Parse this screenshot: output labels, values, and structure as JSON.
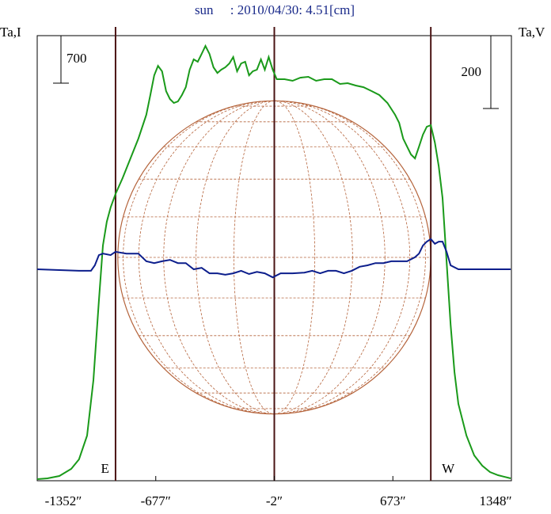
{
  "chart_data": {
    "type": "line",
    "title": "sun　 : 2010/04/30: 4.51[cm]",
    "ylabel": "Ta,I",
    "y2label": "Ta,V",
    "xlim": [
      -1352,
      1348
    ],
    "xticks": [
      {
        "value": -1352,
        "label": "-1352″"
      },
      {
        "value": -677,
        "label": "-677″"
      },
      {
        "value": -2,
        "label": "-2″"
      },
      {
        "value": 673,
        "label": "673″"
      },
      {
        "value": 1348,
        "label": "1348″"
      }
    ],
    "ylim": [
      0,
      6557
    ],
    "y2lim": [
      -580,
      641
    ],
    "i_scale": 700,
    "v_scale": 200,
    "limb_lines": [
      -906,
      -2,
      889
    ],
    "limb_labels": [
      "E",
      "W"
    ],
    "disk_radius": 891,
    "series": [
      {
        "name": "Ta,I",
        "color": "#1a9a1a",
        "x": [
          -1352,
          -1294,
          -1226,
          -1158,
          -1114,
          -1068,
          -1032,
          -1001,
          -978,
          -956,
          -934,
          -906,
          -866,
          -821,
          -776,
          -731,
          -708,
          -686,
          -664,
          -641,
          -618,
          -596,
          -574,
          -551,
          -528,
          -506,
          -484,
          -461,
          -438,
          -416,
          -394,
          -371,
          -348,
          -326,
          -304,
          -281,
          -258,
          -236,
          -214,
          -191,
          -168,
          -146,
          -124,
          -101,
          -78,
          -56,
          -34,
          -11,
          12,
          56,
          102,
          146,
          192,
          236,
          282,
          326,
          372,
          416,
          462,
          506,
          552,
          596,
          642,
          686,
          709,
          732,
          754,
          776,
          799,
          822,
          844,
          866,
          889,
          912,
          934,
          956,
          979,
          1002,
          1024,
          1046,
          1092,
          1136,
          1182,
          1226,
          1272,
          1344
        ],
        "values": [
          23,
          35,
          70,
          175,
          315,
          665,
          1482,
          2648,
          3465,
          3815,
          4025,
          4223,
          4457,
          4748,
          5040,
          5390,
          5682,
          5973,
          6113,
          6032,
          5740,
          5623,
          5565,
          5588,
          5682,
          5798,
          6055,
          6207,
          6172,
          6288,
          6405,
          6288,
          6090,
          6008,
          6055,
          6090,
          6148,
          6242,
          6032,
          6148,
          6172,
          5973,
          6032,
          6055,
          6207,
          6055,
          6242,
          6055,
          5915,
          5915,
          5892,
          5938,
          5950,
          5892,
          5915,
          5915,
          5845,
          5857,
          5822,
          5798,
          5740,
          5682,
          5565,
          5390,
          5273,
          5040,
          4923,
          4807,
          4748,
          4923,
          5098,
          5215,
          5238,
          4982,
          4632,
          4165,
          3232,
          2298,
          1598,
          1132,
          665,
          373,
          222,
          128,
          82,
          35
        ]
      },
      {
        "name": "Ta,V",
        "color": "#0c1e8c",
        "axis": "y2",
        "x": [
          -1352,
          -1114,
          -1046,
          -1024,
          -1001,
          -978,
          -934,
          -906,
          -844,
          -776,
          -731,
          -686,
          -641,
          -596,
          -551,
          -506,
          -461,
          -416,
          -371,
          -326,
          -281,
          -236,
          -191,
          -146,
          -101,
          -56,
          -11,
          34,
          102,
          169,
          214,
          259,
          304,
          349,
          394,
          439,
          484,
          529,
          574,
          619,
          664,
          709,
          754,
          799,
          822,
          844,
          866,
          889,
          912,
          934,
          956,
          979,
          1002,
          1046,
          1136,
          1344
        ],
        "values": [
          0,
          -4,
          -4,
          11,
          39,
          43,
          39,
          48,
          43,
          43,
          22,
          17,
          22,
          26,
          17,
          17,
          0,
          4,
          -11,
          -11,
          -15,
          -11,
          -4,
          -13,
          -7,
          -11,
          -22,
          -11,
          -11,
          -9,
          -4,
          -11,
          -4,
          -4,
          -11,
          -4,
          7,
          11,
          17,
          17,
          22,
          22,
          22,
          33,
          43,
          65,
          76,
          83,
          70,
          76,
          76,
          48,
          11,
          0,
          0,
          0
        ]
      }
    ]
  }
}
